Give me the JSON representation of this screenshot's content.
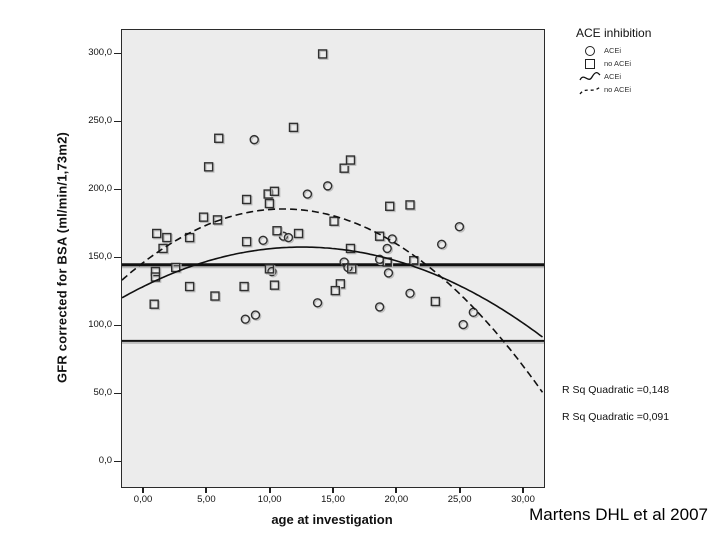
{
  "caption": "Martens DHL et al 2007",
  "colors": {
    "plot_bg": "#ececec",
    "ink": "#111111",
    "marker": "#2f2f2f",
    "shadow": "#bdbdbd"
  },
  "legend": {
    "title": "ACE inhibition",
    "entries": [
      {
        "symbol": "circle-marker",
        "label": "ACEi"
      },
      {
        "symbol": "square-marker",
        "label": "no ACEi"
      },
      {
        "symbol": "solid-curve",
        "label": "ACEi"
      },
      {
        "symbol": "dashed-curve",
        "label": "no ACEi"
      }
    ]
  },
  "chart_data": {
    "type": "scatter",
    "title": "",
    "xlabel": "age at investigation",
    "ylabel": "GFR corrected for BSA (ml/min/1,73m2)",
    "xlim": [
      -1.74,
      31.58
    ],
    "ylim": [
      -18.4,
      317.6
    ],
    "grid": false,
    "legend_position": "top-right",
    "xticks": {
      "values": [
        0,
        5,
        10,
        15,
        20,
        25,
        30
      ],
      "labels": [
        "0,00",
        "5,00",
        "10,00",
        "15,00",
        "20,00",
        "25,00",
        "30,00"
      ]
    },
    "yticks": {
      "values": [
        0,
        50,
        100,
        150,
        200,
        250,
        300
      ],
      "labels": [
        "0,0",
        "50,0",
        "100,0",
        "150,0",
        "200,0",
        "250,0",
        "300,0"
      ]
    },
    "reference_lines": [
      {
        "y": 145,
        "width": 3
      },
      {
        "y": 89,
        "width": 2
      }
    ],
    "series": [
      {
        "name": "ACEi",
        "marker": "circle",
        "points": [
          [
            8.7,
            237
          ],
          [
            12.9,
            197
          ],
          [
            14.5,
            203
          ],
          [
            11.0,
            166
          ],
          [
            11.4,
            165
          ],
          [
            9.4,
            163
          ],
          [
            19.6,
            164
          ],
          [
            19.2,
            157
          ],
          [
            24.9,
            173
          ],
          [
            23.5,
            160
          ],
          [
            15.8,
            147
          ],
          [
            16.1,
            143
          ],
          [
            18.6,
            149
          ],
          [
            19.3,
            139
          ],
          [
            10.1,
            140
          ],
          [
            21.0,
            124
          ],
          [
            18.6,
            114
          ],
          [
            13.7,
            117
          ],
          [
            8.0,
            105
          ],
          [
            8.8,
            108
          ],
          [
            26.0,
            110
          ],
          [
            25.2,
            101
          ]
        ]
      },
      {
        "name": "no ACEi",
        "marker": "square",
        "points": [
          [
            14.1,
            300
          ],
          [
            11.8,
            246
          ],
          [
            5.9,
            238
          ],
          [
            5.1,
            217
          ],
          [
            15.8,
            216
          ],
          [
            16.3,
            222
          ],
          [
            19.4,
            188
          ],
          [
            21.0,
            189
          ],
          [
            15.0,
            177
          ],
          [
            8.1,
            193
          ],
          [
            9.8,
            197
          ],
          [
            10.3,
            199
          ],
          [
            9.9,
            190
          ],
          [
            4.7,
            180
          ],
          [
            5.8,
            178
          ],
          [
            1.0,
            168
          ],
          [
            1.8,
            165
          ],
          [
            3.6,
            165
          ],
          [
            1.5,
            157
          ],
          [
            8.1,
            162
          ],
          [
            10.5,
            170
          ],
          [
            12.2,
            168
          ],
          [
            18.6,
            166
          ],
          [
            16.3,
            157
          ],
          [
            19.2,
            147
          ],
          [
            21.3,
            148
          ],
          [
            2.5,
            143
          ],
          [
            0.9,
            140
          ],
          [
            0.9,
            136
          ],
          [
            16.4,
            142
          ],
          [
            9.9,
            142
          ],
          [
            3.6,
            129
          ],
          [
            7.9,
            129
          ],
          [
            10.3,
            130
          ],
          [
            5.6,
            122
          ],
          [
            15.5,
            131
          ],
          [
            15.1,
            126
          ],
          [
            23.0,
            118
          ],
          [
            0.8,
            116
          ]
        ]
      }
    ],
    "fits": [
      {
        "name": "ACEi",
        "style": "solid",
        "vertex_x": 12.5,
        "vertex_y": 158,
        "a": -0.184
      },
      {
        "name": "no ACEi",
        "style": "dashed",
        "vertex_x": 11.0,
        "vertex_y": 186,
        "a": -0.322
      }
    ],
    "annotations": [
      "R Sq Quadratic =0,148",
      "R Sq Quadratic =0,091"
    ]
  }
}
